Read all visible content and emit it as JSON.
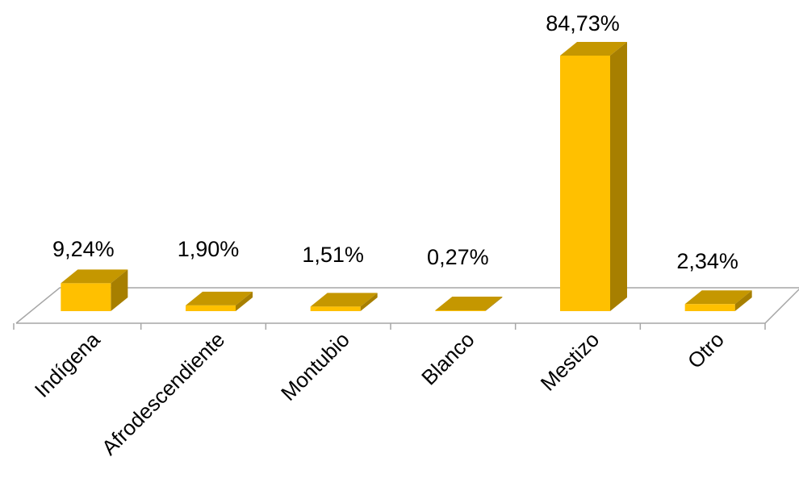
{
  "chart_data": {
    "type": "bar",
    "style": "3d-column",
    "categories": [
      "Indígena",
      "Afrodescendiente",
      "Montubio",
      "Blanco",
      "Mestizo",
      "Otro"
    ],
    "values": [
      9.24,
      1.9,
      1.51,
      0.27,
      84.73,
      2.34
    ],
    "data_labels": [
      "9,24%",
      "1,90%",
      "1,51%",
      "0,27%",
      "84,73%",
      "2,34%"
    ],
    "title": "",
    "xlabel": "",
    "ylabel": "",
    "ylim": [
      0,
      85
    ],
    "grid": false,
    "legend": "none",
    "colors": {
      "bar_front": "#FFC000",
      "bar_side": "#A77F00",
      "bar_top": "#C59700",
      "floor_line": "#A6A6A6"
    }
  }
}
